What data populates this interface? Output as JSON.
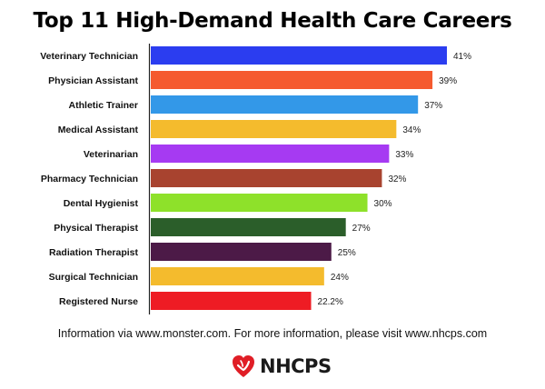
{
  "chart_data": {
    "type": "bar",
    "orientation": "horizontal",
    "title": "Top 11 High-Demand Health Care Careers",
    "categories": [
      "Veterinary Technician",
      "Physician Assistant",
      "Athletic Trainer",
      "Medical Assistant",
      "Veterinarian",
      "Pharmacy Technician",
      "Dental Hygienist",
      "Physical Therapist",
      "Radiation Therapist",
      "Surgical Technician",
      "Registered Nurse"
    ],
    "values": [
      41,
      39,
      37,
      34,
      33,
      32,
      30,
      27,
      25,
      24,
      22.2
    ],
    "value_labels": [
      "41%",
      "39%",
      "37%",
      "34%",
      "33%",
      "32%",
      "30%",
      "27%",
      "25%",
      "24%",
      "22.2%"
    ],
    "colors": [
      "#2b3df0",
      "#f55a2f",
      "#3398e8",
      "#f4bb2d",
      "#a63af2",
      "#a8432f",
      "#8ee12a",
      "#2b5e2a",
      "#4c1a47",
      "#f4bb2d",
      "#ee1c24"
    ],
    "xlim": [
      0,
      41
    ],
    "grid": false,
    "legend": "none"
  },
  "footnote": "Information via www.monster.com. For more information, please visit www.nhcps.com",
  "logo": {
    "text": "NHCPS",
    "icon": "heart-icon",
    "color": "#e01e26"
  }
}
